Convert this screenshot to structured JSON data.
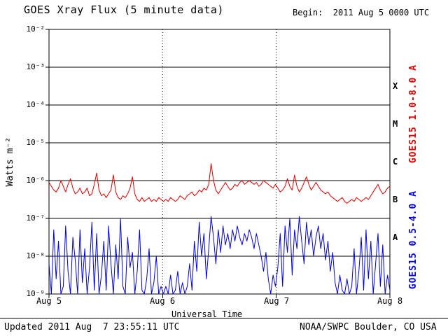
{
  "header": {
    "title": "GOES Xray Flux (5 minute data)",
    "begin_label": "Begin:  2011 Aug 5 0000 UTC"
  },
  "footer": {
    "updated": "Updated 2011 Aug  7 23:55:11 UTC",
    "source": "NOAA/SWPC Boulder, CO USA"
  },
  "axes": {
    "ylabel": "Watts m⁻²",
    "xlabel": "Universal Time",
    "yticks": [
      "10⁻²",
      "10⁻³",
      "10⁻⁴",
      "10⁻⁵",
      "10⁻⁶",
      "10⁻⁷",
      "10⁻⁸",
      "10⁻⁹"
    ],
    "xticks": [
      "Aug 5",
      "Aug 6",
      "Aug 7",
      "Aug 8"
    ]
  },
  "right_labels": {
    "classes": [
      "X",
      "M",
      "C",
      "B",
      "A"
    ],
    "red_series": "GOES15 1.0-8.0 A",
    "blue_series": "GOES15 0.5-4.0 A"
  },
  "colors": {
    "red": "#dd0000",
    "blue": "#0000dd",
    "axis": "#000000",
    "background": "#ffffff"
  },
  "chart_data": {
    "type": "line",
    "title": "GOES Xray Flux (5 minute data)",
    "xlabel": "Universal Time",
    "ylabel": "Watts m^-2",
    "x_categories": [
      "Aug 5",
      "Aug 6",
      "Aug 7",
      "Aug 8"
    ],
    "x_range": "2011 Aug 5 0000 UTC to 2011 Aug 8 0000 UTC",
    "y_scale": "log10",
    "ylim_log10": [
      -9,
      -2
    ],
    "grid": "horizontal solid line per decade, vertical dotted line per day",
    "flare_class_bands": {
      "X": "1e-4..1e-3",
      "M": "1e-5..1e-4",
      "C": "1e-6..1e-5",
      "B": "1e-7..1e-6",
      "A": "1e-8..1e-7"
    },
    "points_per_day": 48,
    "series": [
      {
        "name": "GOES15 1.0-8.0 A",
        "color": "#dd0000",
        "log10_values": [
          -6.05,
          -6.15,
          -6.25,
          -6.3,
          -6.2,
          -6.0,
          -6.15,
          -6.3,
          -6.1,
          -5.95,
          -6.2,
          -6.35,
          -6.3,
          -6.2,
          -6.35,
          -6.3,
          -6.2,
          -6.4,
          -6.35,
          -6.1,
          -5.8,
          -6.25,
          -6.4,
          -6.35,
          -6.45,
          -6.35,
          -6.25,
          -5.85,
          -6.3,
          -6.45,
          -6.5,
          -6.4,
          -6.45,
          -6.35,
          -6.2,
          -5.9,
          -6.35,
          -6.5,
          -6.55,
          -6.45,
          -6.55,
          -6.5,
          -6.45,
          -6.55,
          -6.5,
          -6.55,
          -6.45,
          -6.5,
          -6.55,
          -6.5,
          -6.55,
          -6.45,
          -6.5,
          -6.55,
          -6.5,
          -6.4,
          -6.45,
          -6.5,
          -6.4,
          -6.35,
          -6.3,
          -6.4,
          -6.35,
          -6.25,
          -6.3,
          -6.2,
          -6.25,
          -6.1,
          -5.55,
          -6.0,
          -6.25,
          -6.35,
          -6.25,
          -6.15,
          -6.05,
          -6.15,
          -6.25,
          -6.2,
          -6.1,
          -6.15,
          -6.05,
          -6.0,
          -6.1,
          -6.05,
          -6.0,
          -6.05,
          -6.1,
          -6.05,
          -6.15,
          -6.1,
          -6.0,
          -6.05,
          -6.1,
          -6.15,
          -6.2,
          -6.1,
          -6.2,
          -6.3,
          -6.25,
          -6.15,
          -5.95,
          -6.15,
          -6.25,
          -5.85,
          -6.15,
          -6.3,
          -6.2,
          -6.05,
          -5.9,
          -6.1,
          -6.25,
          -6.15,
          -6.05,
          -6.15,
          -6.25,
          -6.3,
          -6.35,
          -6.3,
          -6.4,
          -6.45,
          -6.5,
          -6.55,
          -6.5,
          -6.45,
          -6.55,
          -6.6,
          -6.55,
          -6.5,
          -6.55,
          -6.45,
          -6.5,
          -6.55,
          -6.5,
          -6.45,
          -6.5,
          -6.4,
          -6.3,
          -6.2,
          -6.1,
          -6.25,
          -6.35,
          -6.3,
          -6.2,
          -6.15
        ]
      },
      {
        "name": "GOES15 0.5-4.0 A",
        "color": "#0000dd",
        "log10_values": [
          -8.2,
          -9.0,
          -7.3,
          -8.6,
          -7.6,
          -9.0,
          -8.8,
          -7.2,
          -8.4,
          -9.0,
          -7.5,
          -8.1,
          -9.0,
          -7.3,
          -8.7,
          -7.8,
          -9.0,
          -8.3,
          -7.1,
          -8.9,
          -7.4,
          -9.0,
          -8.5,
          -7.6,
          -8.9,
          -7.2,
          -8.2,
          -9.0,
          -7.7,
          -8.6,
          -7.0,
          -8.8,
          -9.0,
          -7.5,
          -8.3,
          -7.9,
          -9.0,
          -8.4,
          -7.3,
          -8.9,
          -9.0,
          -8.6,
          -7.8,
          -9.0,
          -8.7,
          -8.0,
          -9.0,
          -8.8,
          -9.0,
          -8.8,
          -9.0,
          -8.5,
          -9.0,
          -8.9,
          -8.4,
          -9.0,
          -8.7,
          -9.0,
          -8.8,
          -8.2,
          -8.9,
          -7.6,
          -8.4,
          -7.1,
          -8.0,
          -7.4,
          -8.6,
          -7.8,
          -6.95,
          -7.5,
          -8.2,
          -7.3,
          -7.9,
          -7.2,
          -7.7,
          -7.4,
          -7.8,
          -7.3,
          -7.6,
          -7.2,
          -7.5,
          -7.7,
          -7.4,
          -7.6,
          -7.3,
          -7.5,
          -7.8,
          -7.4,
          -7.7,
          -8.0,
          -8.4,
          -7.9,
          -8.6,
          -9.0,
          -8.5,
          -8.8,
          -8.3,
          -7.4,
          -8.8,
          -7.2,
          -7.9,
          -7.0,
          -8.5,
          -7.3,
          -7.8,
          -6.95,
          -7.6,
          -8.2,
          -7.1,
          -7.7,
          -7.3,
          -8.0,
          -7.5,
          -7.2,
          -7.8,
          -7.4,
          -8.1,
          -7.6,
          -8.4,
          -7.9,
          -8.7,
          -9.0,
          -8.5,
          -8.9,
          -9.0,
          -8.6,
          -9.0,
          -8.8,
          -7.8,
          -9.0,
          -8.4,
          -7.5,
          -8.9,
          -7.3,
          -8.6,
          -7.6,
          -9.0,
          -8.2,
          -7.4,
          -8.8,
          -7.7,
          -9.0,
          -8.5,
          -8.9
        ]
      }
    ]
  }
}
